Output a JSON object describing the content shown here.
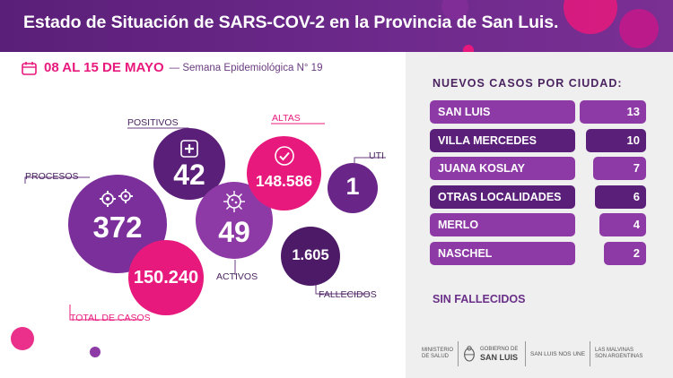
{
  "header": {
    "title": "Estado de Situación de SARS-COV-2 en la Provincia de San Luis."
  },
  "date": {
    "range": "08 AL 15 DE MAYO",
    "week": "— Semana Epidemiológica N° 19"
  },
  "stats": {
    "procesos": {
      "label": "PROCESOS",
      "value": "372"
    },
    "positivos": {
      "label": "POSITIVOS",
      "value": "42"
    },
    "altas": {
      "label": "ALTAS",
      "value": "148.586"
    },
    "uti": {
      "label": "UTI",
      "value": "1"
    },
    "activos": {
      "label": "ACTIVOS",
      "value": "49"
    },
    "total": {
      "label": "TOTAL DE CASOS",
      "value": "150.240"
    },
    "fallecidos": {
      "label": "FALLECIDOS",
      "value": "1.605"
    }
  },
  "cities": {
    "title": "NUEVOS CASOS POR CIUDAD:",
    "items": [
      {
        "name": "SAN LUIS",
        "value": 13,
        "label": "13"
      },
      {
        "name": "VILLA MERCEDES",
        "value": 10,
        "label": "10"
      },
      {
        "name": "JUANA KOSLAY",
        "value": 7,
        "label": "7"
      },
      {
        "name": "OTRAS LOCALIDADES",
        "value": 6,
        "label": "6"
      },
      {
        "name": "MERLO",
        "value": 4,
        "label": "4"
      },
      {
        "name": "NASCHEL",
        "value": 2,
        "label": "2"
      }
    ],
    "no_deaths": "SIN FALLECIDOS"
  },
  "footer": {
    "ministerio_l1": "MINISTERIO",
    "ministerio_l2": "DE SALUD",
    "gobierno_l1": "GOBIERNO DE",
    "gobierno_l2": "SAN LUIS",
    "slogan": "SAN LUIS NOS UNE",
    "malvinas_l1": "LAS MALVINAS",
    "malvinas_l2": "SON ARGENTINAS"
  },
  "colors": {
    "purple_dark": "#5a1f78",
    "purple": "#8e3aa6",
    "magenta": "#e8197d"
  }
}
